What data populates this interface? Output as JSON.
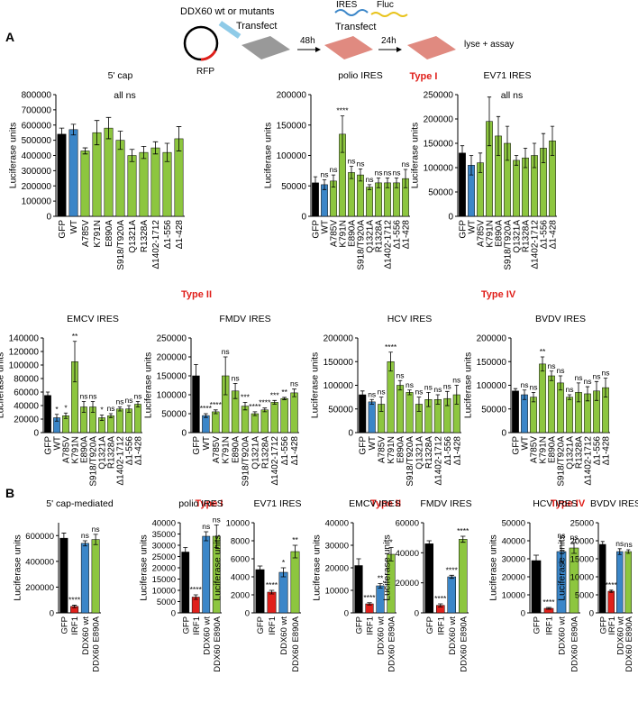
{
  "figure": {
    "panel_a": "A",
    "panel_b": "B",
    "schematic": {
      "constructs": "DDX60 wt or mutants",
      "transfect1": "Transfect",
      "rfp": "RFP",
      "time1": "48h",
      "ires": "IRES",
      "fluc": "Fluc",
      "transfect2": "Transfect",
      "time2": "24h",
      "lyse": "lyse + assay"
    },
    "headers": {
      "a_type1": "Type I",
      "a_type2": "Type II",
      "a_type4": "Type IV",
      "b_type1": "Type I",
      "b_type2": "Type II",
      "b_type4": "Type IV"
    }
  },
  "chart_data": [
    {
      "type": "bar",
      "title": "5' cap",
      "ylabel": "Luciferase units",
      "note": "all ns",
      "categories": [
        "GFP",
        "WT",
        "A785V",
        "K791N",
        "E890A",
        "S918/T920A",
        "Q1321A",
        "R1328A",
        "Δ1402-1712",
        "Δ1-556",
        "Δ1-428"
      ],
      "values": [
        540000,
        570000,
        430000,
        550000,
        580000,
        500000,
        400000,
        420000,
        450000,
        420000,
        510000
      ],
      "errors": [
        40000,
        35000,
        20000,
        80000,
        70000,
        60000,
        40000,
        40000,
        40000,
        60000,
        80000
      ],
      "colors": [
        "#000000",
        "#3b86c8",
        "#8dc63f",
        "#8dc63f",
        "#8dc63f",
        "#8dc63f",
        "#8dc63f",
        "#8dc63f",
        "#8dc63f",
        "#8dc63f",
        "#8dc63f"
      ],
      "ylim": [
        0,
        800000
      ],
      "yticks": [
        0,
        100000,
        200000,
        300000,
        400000,
        500000,
        600000,
        700000,
        800000
      ]
    },
    {
      "type": "bar",
      "title": "polio IRES",
      "ylabel": "Luciferase units",
      "categories": [
        "GFP",
        "WT",
        "A785V",
        "K791N",
        "E890A",
        "S918/T920A",
        "Q1321A",
        "R1328A",
        "Δ1402-1712",
        "Δ1-556",
        "Δ1-428"
      ],
      "values": [
        55000,
        52000,
        58000,
        135000,
        72000,
        68000,
        48000,
        55000,
        55000,
        55000,
        62000
      ],
      "errors": [
        10000,
        8000,
        10000,
        30000,
        10000,
        10000,
        4000,
        8000,
        8000,
        8000,
        15000
      ],
      "colors": [
        "#000000",
        "#3b86c8",
        "#8dc63f",
        "#8dc63f",
        "#8dc63f",
        "#8dc63f",
        "#8dc63f",
        "#8dc63f",
        "#8dc63f",
        "#8dc63f",
        "#8dc63f"
      ],
      "annotations": [
        null,
        "ns",
        "ns",
        "****",
        "ns",
        "ns",
        "ns",
        "ns",
        "ns",
        "ns",
        "ns"
      ],
      "ylim": [
        0,
        200000
      ],
      "yticks": [
        0,
        50000,
        100000,
        150000,
        200000
      ]
    },
    {
      "type": "bar",
      "title": "EV71 IRES",
      "ylabel": "Luciferase units",
      "note": "all ns",
      "categories": [
        "GFP",
        "WT",
        "A785V",
        "K791N",
        "E890A",
        "S918/T920A",
        "Q1321A",
        "R1328A",
        "Δ1402-1712",
        "Δ1-556",
        "Δ1-428"
      ],
      "values": [
        130000,
        105000,
        110000,
        195000,
        165000,
        150000,
        115000,
        120000,
        125000,
        140000,
        155000
      ],
      "errors": [
        15000,
        20000,
        20000,
        50000,
        40000,
        35000,
        10000,
        20000,
        25000,
        30000,
        30000
      ],
      "colors": [
        "#000000",
        "#3b86c8",
        "#8dc63f",
        "#8dc63f",
        "#8dc63f",
        "#8dc63f",
        "#8dc63f",
        "#8dc63f",
        "#8dc63f",
        "#8dc63f",
        "#8dc63f"
      ],
      "ylim": [
        0,
        250000
      ],
      "yticks": [
        0,
        50000,
        100000,
        150000,
        200000,
        250000
      ]
    },
    {
      "type": "bar",
      "title": "EMCV IRES",
      "ylabel": "Luciferase units",
      "categories": [
        "GFP",
        "WT",
        "A785V",
        "K791N",
        "E890A",
        "S918/T920A",
        "Q1321A",
        "R1328A",
        "Δ1402-1712",
        "Δ1-556",
        "Δ1-428"
      ],
      "values": [
        55000,
        22000,
        25000,
        105000,
        38000,
        38000,
        22000,
        25000,
        35000,
        35000,
        42000
      ],
      "errors": [
        5000,
        5000,
        4000,
        30000,
        8000,
        8000,
        4000,
        3000,
        3000,
        5000,
        4000
      ],
      "colors": [
        "#000000",
        "#3b86c8",
        "#8dc63f",
        "#8dc63f",
        "#8dc63f",
        "#8dc63f",
        "#8dc63f",
        "#8dc63f",
        "#8dc63f",
        "#8dc63f",
        "#8dc63f"
      ],
      "annotations": [
        null,
        "*",
        "*",
        "**",
        "ns",
        "ns",
        "*",
        "ns",
        "ns",
        "ns",
        "ns"
      ],
      "ylim": [
        0,
        140000
      ],
      "yticks": [
        0,
        20000,
        40000,
        60000,
        80000,
        100000,
        120000,
        140000
      ]
    },
    {
      "type": "bar",
      "title": "FMDV IRES",
      "ylabel": "Luciferase units",
      "categories": [
        "GFP",
        "WT",
        "A785V",
        "K791N",
        "E890A",
        "S918/T920A",
        "Q1321A",
        "R1328A",
        "Δ1402-1712",
        "Δ1-556",
        "Δ1-428"
      ],
      "values": [
        150000,
        45000,
        55000,
        150000,
        110000,
        70000,
        50000,
        60000,
        80000,
        90000,
        105000
      ],
      "errors": [
        30000,
        5000,
        5000,
        50000,
        20000,
        10000,
        5000,
        5000,
        5000,
        3000,
        10000
      ],
      "colors": [
        "#000000",
        "#3b86c8",
        "#8dc63f",
        "#8dc63f",
        "#8dc63f",
        "#8dc63f",
        "#8dc63f",
        "#8dc63f",
        "#8dc63f",
        "#8dc63f",
        "#8dc63f"
      ],
      "annotations": [
        null,
        "****",
        "****",
        "ns",
        "ns",
        "***",
        "****",
        "****",
        "***",
        "**",
        "ns"
      ],
      "ylim": [
        0,
        250000
      ],
      "yticks": [
        0,
        50000,
        100000,
        150000,
        200000,
        250000
      ]
    },
    {
      "type": "bar",
      "title": "HCV IRES",
      "ylabel": "Luciferase units",
      "categories": [
        "GFP",
        "WT",
        "A785V",
        "K791N",
        "E890A",
        "S918/T920A",
        "Q1321A",
        "R1328A",
        "Δ1402-1712",
        "Δ1-556",
        "Δ1-428"
      ],
      "values": [
        80000,
        65000,
        60000,
        150000,
        100000,
        85000,
        60000,
        70000,
        70000,
        72000,
        80000
      ],
      "errors": [
        8000,
        5000,
        15000,
        20000,
        10000,
        5000,
        15000,
        15000,
        10000,
        15000,
        20000
      ],
      "colors": [
        "#000000",
        "#3b86c8",
        "#8dc63f",
        "#8dc63f",
        "#8dc63f",
        "#8dc63f",
        "#8dc63f",
        "#8dc63f",
        "#8dc63f",
        "#8dc63f",
        "#8dc63f"
      ],
      "annotations": [
        null,
        "ns",
        "ns",
        "****",
        "ns",
        "ns",
        "ns",
        "ns",
        "ns",
        "ns",
        "ns"
      ],
      "ylim": [
        0,
        200000
      ],
      "yticks": [
        0,
        50000,
        100000,
        150000,
        200000
      ]
    },
    {
      "type": "bar",
      "title": "BVDV IRES",
      "ylabel": "Luciferase units",
      "categories": [
        "GFP",
        "WT",
        "A785V",
        "K791N",
        "E890A",
        "S918/T920A",
        "Q1321A",
        "R1328A",
        "Δ1402-1712",
        "Δ1-556",
        "Δ1-428"
      ],
      "values": [
        88000,
        80000,
        75000,
        145000,
        120000,
        105000,
        75000,
        85000,
        82000,
        88000,
        95000
      ],
      "errors": [
        5000,
        10000,
        10000,
        15000,
        10000,
        15000,
        5000,
        20000,
        15000,
        20000,
        20000
      ],
      "colors": [
        "#000000",
        "#3b86c8",
        "#8dc63f",
        "#8dc63f",
        "#8dc63f",
        "#8dc63f",
        "#8dc63f",
        "#8dc63f",
        "#8dc63f",
        "#8dc63f",
        "#8dc63f"
      ],
      "annotations": [
        null,
        "ns",
        "ns",
        "**",
        "ns",
        "ns",
        "ns",
        "ns",
        "ns",
        "ns",
        "ns"
      ],
      "ylim": [
        0,
        200000
      ],
      "yticks": [
        0,
        50000,
        100000,
        150000,
        200000
      ]
    },
    {
      "type": "bar",
      "title": "5' cap-mediated",
      "ylabel": "Luciferase units",
      "categories": [
        "GFP",
        "IRF1",
        "DDX60 wt",
        "DDX60 E890A"
      ],
      "values": [
        580000,
        50000,
        540000,
        570000
      ],
      "errors": [
        40000,
        10000,
        20000,
        40000
      ],
      "colors": [
        "#000000",
        "#e0201b",
        "#3b86c8",
        "#8dc63f"
      ],
      "annotations": [
        null,
        "****",
        "ns",
        "ns"
      ],
      "ylim": [
        0,
        700000
      ],
      "yticks": [
        0,
        200000,
        400000,
        600000
      ]
    },
    {
      "type": "bar",
      "title": "polio IRES",
      "ylabel": "Luciferase units",
      "categories": [
        "GFP",
        "IRF1",
        "DDX60 wt",
        "DDX60 E890A"
      ],
      "values": [
        27000,
        7000,
        34000,
        34000
      ],
      "errors": [
        2000,
        1000,
        2000,
        5000
      ],
      "colors": [
        "#000000",
        "#e0201b",
        "#3b86c8",
        "#8dc63f"
      ],
      "annotations": [
        null,
        "****",
        "ns",
        "ns"
      ],
      "ylim": [
        0,
        40000
      ],
      "yticks": [
        0,
        5000,
        10000,
        15000,
        20000,
        25000,
        30000,
        35000,
        40000
      ]
    },
    {
      "type": "bar",
      "title": "EV71 IRES",
      "ylabel": "Luciferase units",
      "categories": [
        "GFP",
        "IRF1",
        "DDX60 wt",
        "DDX60 E890A"
      ],
      "values": [
        4800,
        2300,
        4500,
        6800
      ],
      "errors": [
        400,
        200,
        500,
        700
      ],
      "colors": [
        "#000000",
        "#e0201b",
        "#3b86c8",
        "#8dc63f"
      ],
      "annotations": [
        null,
        "****",
        "*",
        "**"
      ],
      "ylim": [
        0,
        10000
      ],
      "yticks": [
        0,
        2000,
        4000,
        6000,
        8000,
        10000
      ]
    },
    {
      "type": "bar",
      "title": "EMCV IRES",
      "ylabel": "Luciferase units",
      "categories": [
        "GFP",
        "IRF1",
        "DDX60 wt",
        "DDX60 E890A"
      ],
      "values": [
        21000,
        4000,
        12000,
        26000
      ],
      "errors": [
        3000,
        500,
        1000,
        3000
      ],
      "colors": [
        "#000000",
        "#e0201b",
        "#3b86c8",
        "#8dc63f"
      ],
      "annotations": [
        null,
        "****",
        "**",
        "*"
      ],
      "ylim": [
        0,
        40000
      ],
      "yticks": [
        0,
        10000,
        20000,
        30000,
        40000
      ]
    },
    {
      "type": "bar",
      "title": "FMDV IRES",
      "ylabel": "Luciferase units",
      "categories": [
        "GFP",
        "IRF1",
        "DDX60 wt",
        "DDX60 E890A"
      ],
      "values": [
        46000,
        5000,
        24000,
        49000
      ],
      "errors": [
        2000,
        1000,
        1000,
        2000
      ],
      "colors": [
        "#000000",
        "#e0201b",
        "#3b86c8",
        "#8dc63f"
      ],
      "annotations": [
        null,
        "****",
        "****",
        "****"
      ],
      "ylim": [
        0,
        60000
      ],
      "yticks": [
        0,
        20000,
        40000,
        60000
      ]
    },
    {
      "type": "bar",
      "title": "HCV IRES",
      "ylabel": "Luciferase units",
      "categories": [
        "GFP",
        "IRF1",
        "DDX60 wt",
        "DDX60 E890A"
      ],
      "values": [
        29000,
        2500,
        34000,
        36000
      ],
      "errors": [
        3000,
        500,
        6000,
        3000
      ],
      "colors": [
        "#000000",
        "#e0201b",
        "#3b86c8",
        "#8dc63f"
      ],
      "annotations": [
        null,
        "****",
        "ns",
        "ns"
      ],
      "ylim": [
        0,
        50000
      ],
      "yticks": [
        0,
        10000,
        20000,
        30000,
        40000,
        50000
      ]
    },
    {
      "type": "bar",
      "title": "BVDV IRES",
      "ylabel": "Luciferase units",
      "categories": [
        "GFP",
        "IRF1",
        "DDX60 wt",
        "DDX60 E890A"
      ],
      "values": [
        19000,
        6000,
        17000,
        17000
      ],
      "errors": [
        800,
        300,
        800,
        500
      ],
      "colors": [
        "#000000",
        "#e0201b",
        "#3b86c8",
        "#8dc63f"
      ],
      "annotations": [
        null,
        "****",
        "ns",
        "ns"
      ],
      "ylim": [
        0,
        25000
      ],
      "yticks": [
        0,
        5000,
        10000,
        15000,
        20000,
        25000
      ]
    }
  ]
}
